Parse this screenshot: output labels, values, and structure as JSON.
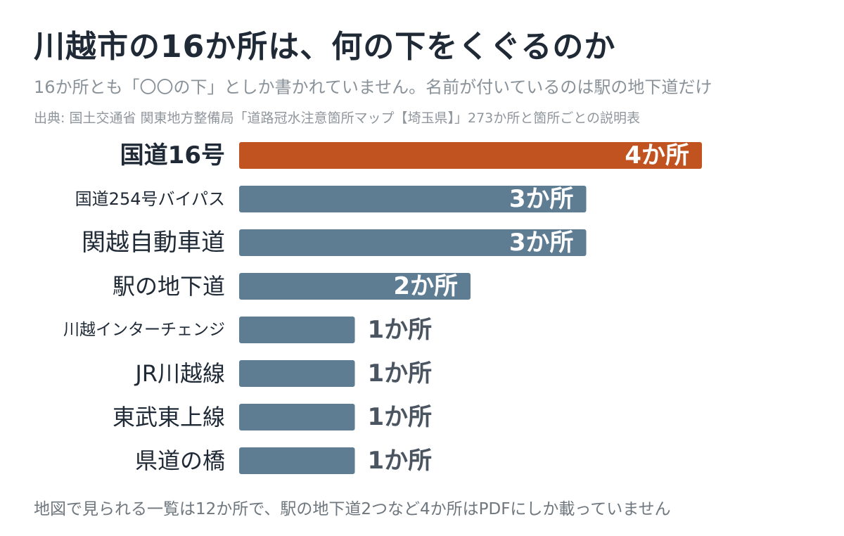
{
  "title": "川越市の16か所は、何の下をくぐるのか",
  "subtitle": "16か所とも「〇〇の下」としか書かれていません。名前が付いているのは駅の地下道だけ",
  "source": "出典: 国土交通省 関東地方整備局「道路冠水注意箇所マップ【埼玉県】」273か所と箇所ごとの説明表",
  "footnote": "地図で見られる一覧は12か所で、駅の地下道2つなど4か所はPDFにしか載っていません",
  "colors": {
    "highlight": "#c0531f",
    "default": "#5e7d93",
    "label_outside": "#4a5561",
    "label_inside": "#ffffff"
  },
  "chart_data": {
    "type": "bar",
    "orientation": "horizontal",
    "categories": [
      "国道16号",
      "国道254号バイパス",
      "関越自動車道",
      "駅の地下道",
      "川越インターチェンジ",
      "JR川越線",
      "東武東上線",
      "県道の橋"
    ],
    "values": [
      4,
      3,
      3,
      2,
      1,
      1,
      1,
      1
    ],
    "value_labels": [
      "4か所",
      "3か所",
      "3か所",
      "2か所",
      "1か所",
      "1か所",
      "1か所",
      "1か所"
    ],
    "highlight_index": 0,
    "xlim": [
      0,
      4
    ],
    "grid": false
  }
}
